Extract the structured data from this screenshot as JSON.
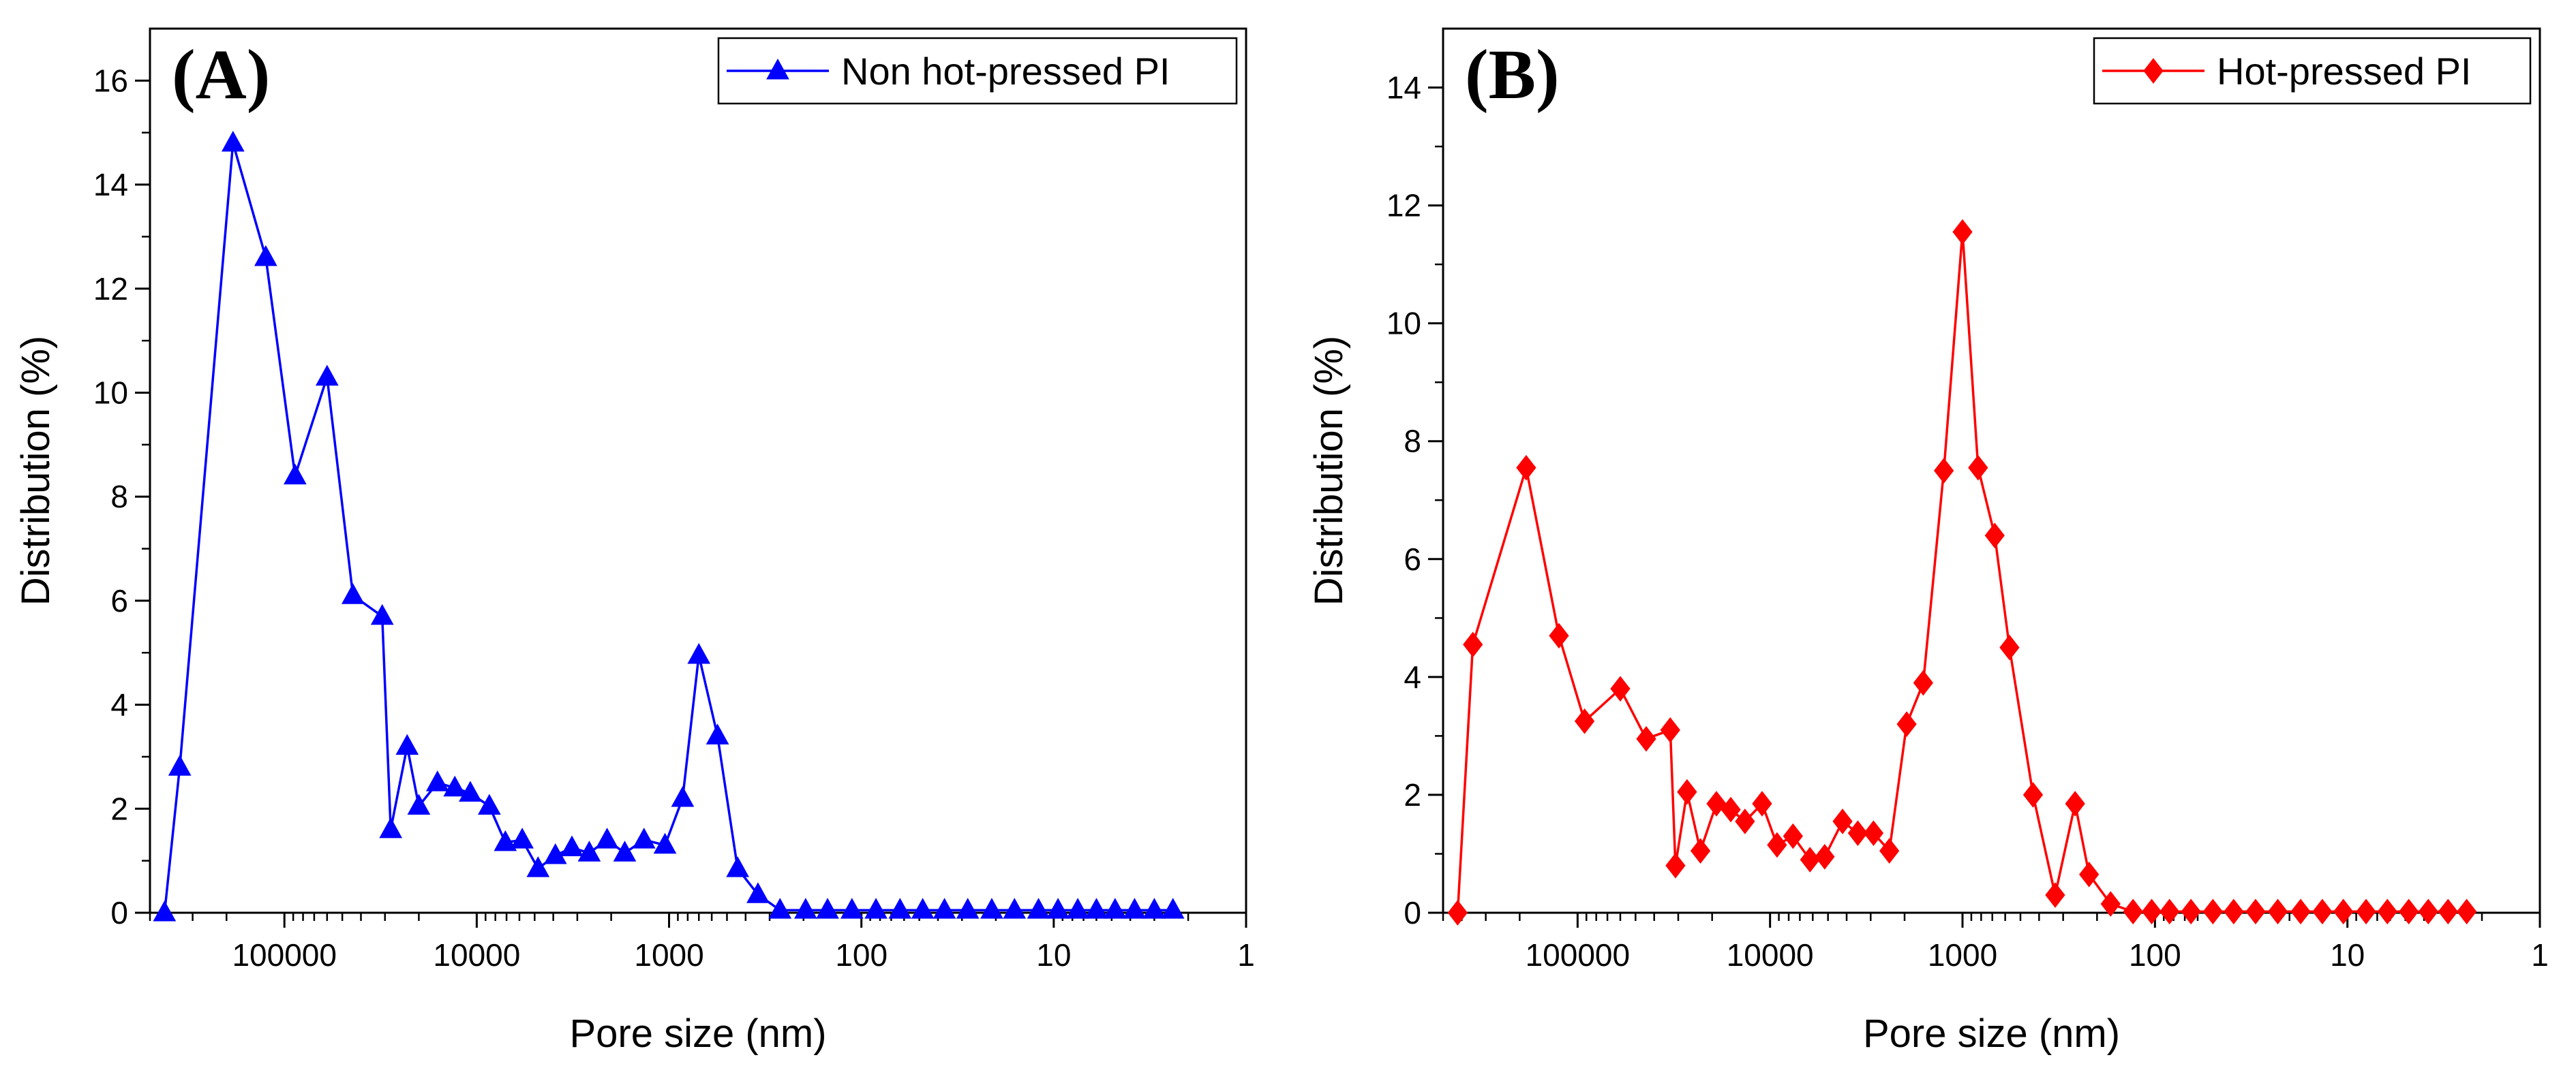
{
  "chart_data": [
    {
      "type": "line",
      "panel_label": "(A)",
      "xlabel": "Pore size (nm)",
      "ylabel": "Distribution (%)",
      "x_scale": "log",
      "x_reversed": true,
      "xlim": [
        500000,
        1
      ],
      "ylim": [
        0,
        17
      ],
      "x_ticks": [
        100000,
        10000,
        1000,
        100,
        10,
        1
      ],
      "x_tick_labels": [
        "100000",
        "10000",
        "1000",
        "100",
        "10",
        "1"
      ],
      "y_ticks": [
        0,
        2,
        4,
        6,
        8,
        10,
        12,
        14,
        16
      ],
      "y_tick_labels": [
        "0",
        "2",
        "4",
        "6",
        "8",
        "10",
        "12",
        "14",
        "16"
      ],
      "legend_position": "top-right",
      "series": [
        {
          "name": "Non hot-pressed PI",
          "color": "#0000ff",
          "marker": "triangle",
          "x": [
            420000,
            350000,
            185000,
            125000,
            88000,
            60000,
            44000,
            31000,
            28000,
            23000,
            20000,
            16000,
            13000,
            10800,
            8600,
            7100,
            5800,
            4800,
            3900,
            3200,
            2600,
            2100,
            1700,
            1350,
            1050,
            850,
            700,
            560,
            440,
            345,
            265,
            195,
            150,
            112,
            84,
            63,
            48,
            37,
            28,
            21,
            16,
            12,
            9.5,
            7.5,
            6,
            4.8,
            3.8,
            3,
            2.4
          ],
          "y": [
            0,
            2.8,
            14.8,
            12.6,
            8.4,
            10.3,
            6.1,
            5.7,
            1.6,
            3.2,
            2.05,
            2.5,
            2.4,
            2.3,
            2.05,
            1.35,
            1.4,
            0.85,
            1.1,
            1.25,
            1.15,
            1.4,
            1.15,
            1.4,
            1.3,
            2.2,
            4.95,
            3.4,
            0.85,
            0.35,
            0.05,
            0.05,
            0.05,
            0.05,
            0.05,
            0.05,
            0.05,
            0.05,
            0.05,
            0.05,
            0.05,
            0.05,
            0.05,
            0.05,
            0.05,
            0.05,
            0.05,
            0.05,
            0.05
          ]
        }
      ]
    },
    {
      "type": "line",
      "panel_label": "(B)",
      "xlabel": "Pore size (nm)",
      "ylabel": "Distribution (%)",
      "x_scale": "log",
      "x_reversed": true,
      "xlim": [
        500000,
        1
      ],
      "ylim": [
        0,
        15
      ],
      "x_ticks": [
        100000,
        10000,
        1000,
        100,
        10,
        1
      ],
      "x_tick_labels": [
        "100000",
        "10000",
        "1000",
        "100",
        "10",
        "1"
      ],
      "y_ticks": [
        0,
        2,
        4,
        6,
        8,
        10,
        12,
        14
      ],
      "y_tick_labels": [
        "0",
        "2",
        "4",
        "6",
        "8",
        "10",
        "12",
        "14"
      ],
      "legend_position": "top-right",
      "series": [
        {
          "name": "Hot-pressed PI",
          "color": "#ff0000",
          "marker": "diamond",
          "x": [
            420000,
            350000,
            185000,
            125000,
            92000,
            60000,
            44000,
            33000,
            31000,
            27000,
            23000,
            19000,
            16000,
            13500,
            11000,
            9200,
            7600,
            6200,
            5200,
            4200,
            3500,
            2900,
            2400,
            1950,
            1600,
            1250,
            1000,
            830,
            680,
            570,
            430,
            330,
            260,
            220,
            170,
            130,
            104,
            84,
            65,
            50,
            39,
            30,
            23,
            17.5,
            13.5,
            10.5,
            8,
            6.2,
            4.8,
            3.8,
            3,
            2.4
          ],
          "y": [
            0,
            4.55,
            7.55,
            4.7,
            3.25,
            3.8,
            2.95,
            3.1,
            0.8,
            2.05,
            1.05,
            1.85,
            1.75,
            1.55,
            1.85,
            1.15,
            1.3,
            0.9,
            0.95,
            1.55,
            1.35,
            1.35,
            1.05,
            3.2,
            3.9,
            7.5,
            11.55,
            7.55,
            6.4,
            4.5,
            2.0,
            0.3,
            1.85,
            0.65,
            0.15,
            0.02,
            0.02,
            0.02,
            0.02,
            0.02,
            0.02,
            0.02,
            0.02,
            0.02,
            0.02,
            0.02,
            0.02,
            0.02,
            0.02,
            0.02,
            0.02,
            0.02
          ]
        }
      ]
    }
  ]
}
